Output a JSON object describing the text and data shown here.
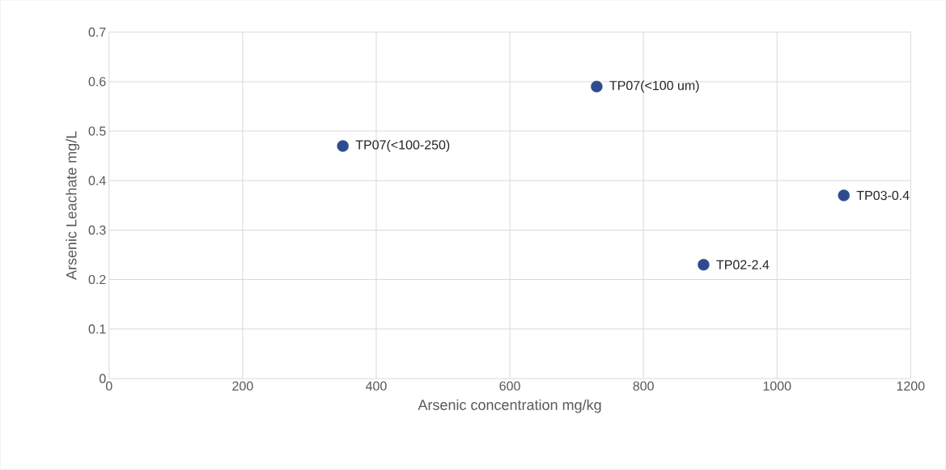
{
  "chart_data": {
    "type": "scatter",
    "xlabel": "Arsenic concentration mg/kg",
    "ylabel": "Arsenic Leachate mg/L",
    "x": [
      350,
      730,
      890,
      1100
    ],
    "values": [
      0.47,
      0.59,
      0.23,
      0.37
    ],
    "color": "#2f4b8f",
    "marker": "circle",
    "xlim": [
      0,
      1200
    ],
    "xticks": [
      0,
      200,
      400,
      600,
      800,
      1000,
      1200
    ],
    "ylim": [
      0,
      0.7
    ],
    "yticks": [
      0,
      0.1,
      0.2,
      0.3,
      0.4,
      0.5,
      0.6,
      0.7
    ],
    "grid": true,
    "annotations": [
      {
        "text": "TP07(<100-250)",
        "x": 350,
        "y": 0.47
      },
      {
        "text": "TP07(<100 um)",
        "x": 730,
        "y": 0.59
      },
      {
        "text": "TP02-2.4",
        "x": 890,
        "y": 0.23
      },
      {
        "text": "TP03-0.4",
        "x": 1100,
        "y": 0.37
      }
    ]
  }
}
